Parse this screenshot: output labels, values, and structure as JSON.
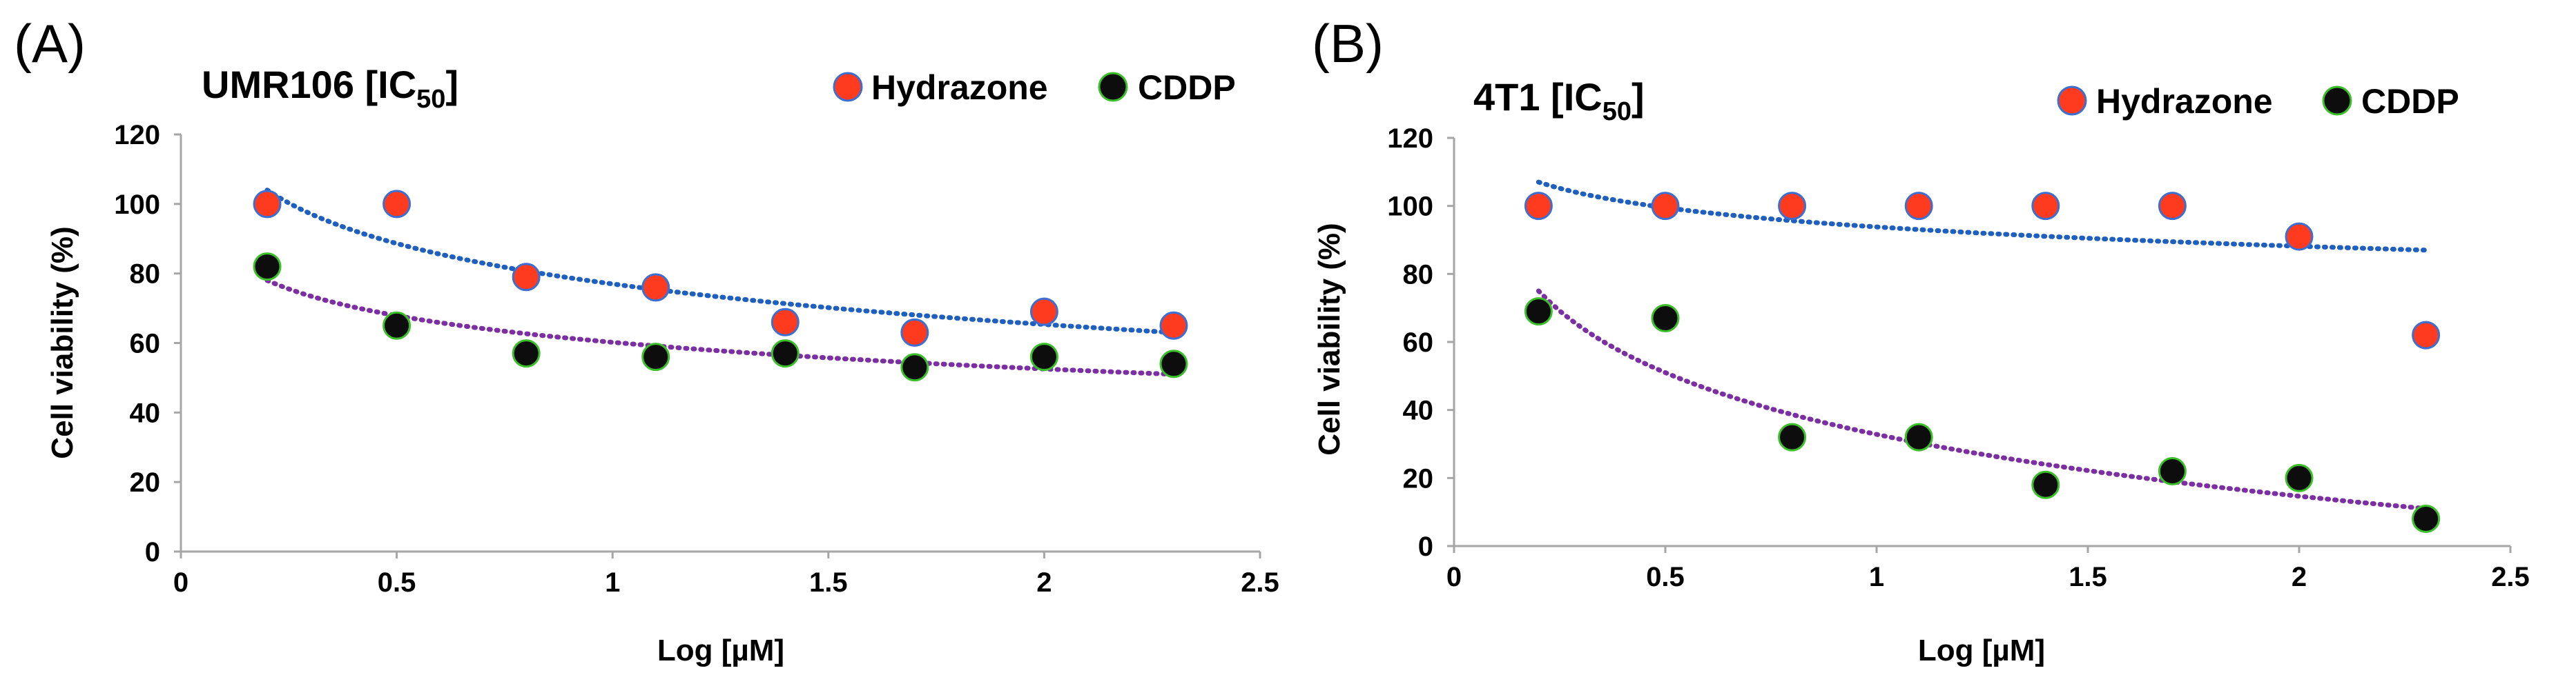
{
  "colors": {
    "hydrazone_fill": "#ff3b1f",
    "hydrazone_edge": "#3b6fd1",
    "cddp_fill": "#0d0d0d",
    "cddp_edge": "#3bbf2a",
    "hydrazone_trend": "#1f5fbf",
    "cddp_trend": "#7b2fa3"
  },
  "chart_data": [
    {
      "type": "scatter",
      "panel_label": "(A)",
      "title_main": "UMR106 [IC",
      "title_sub": "50",
      "title_end": "]",
      "xlabel": "Log [µM]",
      "ylabel": "Cell viability (%)",
      "xlim": [
        0,
        2.5
      ],
      "ylim": [
        0,
        120
      ],
      "x_ticks": [
        0,
        0.5,
        1,
        1.5,
        2,
        2.5
      ],
      "x_tick_labels": [
        "0",
        "0.5",
        "1",
        "1.5",
        "2",
        "2.5"
      ],
      "y_ticks": [
        0,
        20,
        40,
        60,
        80,
        100,
        120
      ],
      "y_tick_labels": [
        "0",
        "20",
        "40",
        "60",
        "80",
        "100",
        "120"
      ],
      "legend": [
        "Hydrazone",
        "CDDP"
      ],
      "series": [
        {
          "name": "Hydrazone",
          "x": [
            0.2,
            0.5,
            0.8,
            1.1,
            1.4,
            1.7,
            2.0,
            2.3
          ],
          "values": [
            100,
            100,
            79,
            76,
            66,
            63,
            69,
            65
          ],
          "trendline": {
            "type": "logarithmic",
            "x_range": [
              0.2,
              2.3
            ],
            "y_range": [
              104,
              63
            ]
          }
        },
        {
          "name": "CDDP",
          "x": [
            0.2,
            0.5,
            0.8,
            1.1,
            1.4,
            1.7,
            2.0,
            2.3
          ],
          "values": [
            82,
            65,
            57,
            56,
            57,
            53,
            56,
            54
          ],
          "trendline": {
            "type": "logarithmic",
            "x_range": [
              0.2,
              2.3
            ],
            "y_range": [
              78,
              51
            ]
          }
        }
      ]
    },
    {
      "type": "scatter",
      "panel_label": "(B)",
      "title_main": "4T1 [IC",
      "title_sub": "50",
      "title_end": "]",
      "xlabel": "Log [µM]",
      "ylabel": "Cell viability (%)",
      "xlim": [
        0,
        2.5
      ],
      "ylim": [
        0,
        120
      ],
      "x_ticks": [
        0,
        0.5,
        1,
        1.5,
        2,
        2.5
      ],
      "x_tick_labels": [
        "0",
        "0.5",
        "1",
        "1.5",
        "2",
        "2.5"
      ],
      "y_ticks": [
        0,
        20,
        40,
        60,
        80,
        100,
        120
      ],
      "y_tick_labels": [
        "0",
        "20",
        "40",
        "60",
        "80",
        "100",
        "120"
      ],
      "legend": [
        "Hydrazone",
        "CDDP"
      ],
      "series": [
        {
          "name": "Hydrazone",
          "x": [
            0.2,
            0.5,
            0.8,
            1.1,
            1.4,
            1.7,
            2.0,
            2.3
          ],
          "values": [
            100,
            100,
            100,
            100,
            100,
            100,
            91,
            62
          ],
          "trendline": {
            "type": "logarithmic",
            "x_range": [
              0.2,
              2.3
            ],
            "y_range": [
              107,
              87
            ]
          }
        },
        {
          "name": "CDDP",
          "x": [
            0.2,
            0.5,
            0.8,
            1.1,
            1.4,
            1.7,
            2.0,
            2.3
          ],
          "values": [
            69,
            67,
            32,
            32,
            18,
            22,
            20,
            8
          ],
          "trendline": {
            "type": "logarithmic",
            "x_range": [
              0.2,
              2.3
            ],
            "y_range": [
              75,
              11
            ]
          }
        }
      ]
    }
  ]
}
